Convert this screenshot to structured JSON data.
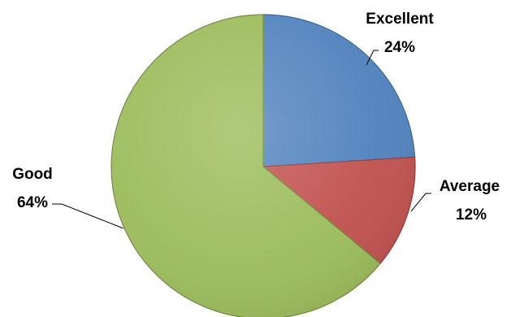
{
  "chart_data": {
    "type": "pie",
    "title": "",
    "slices": [
      {
        "category": "Excellent",
        "value": 24,
        "value_label": "24%",
        "color": "#4f81bd",
        "stroke": "#3a6294"
      },
      {
        "category": "Average",
        "value": 12,
        "value_label": "12%",
        "color": "#c0504d",
        "stroke": "#913633"
      },
      {
        "category": "Good",
        "value": 64,
        "value_label": "64%",
        "color": "#9bbb59",
        "stroke": "#718b3c"
      }
    ],
    "start_angle": "12 o'clock",
    "direction": "clockwise",
    "legend": "none",
    "data_labels": "outside with leader lines"
  }
}
